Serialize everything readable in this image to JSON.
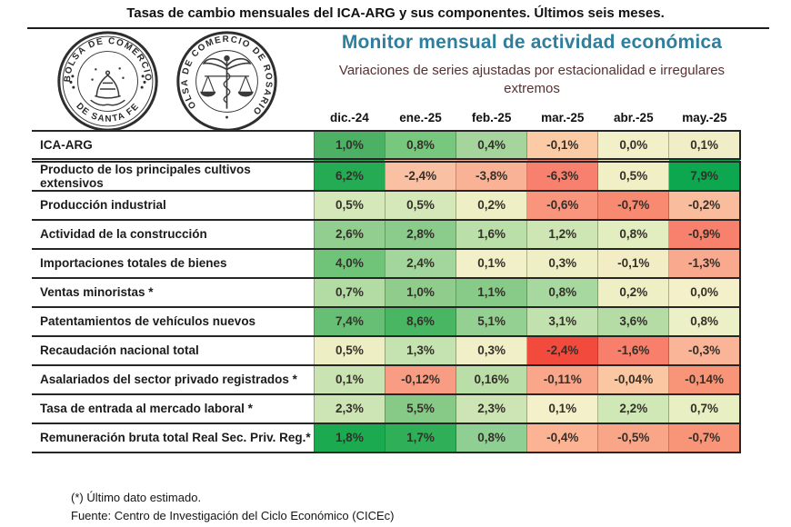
{
  "header": {
    "top_title": "Tasas de cambio mensuales del ICA-ARG y sus componentes. Últimos seis meses.",
    "title": "Monitor mensual de actividad económica",
    "subtitle": "Variaciones de series ajustadas por estacionalidad e irregulares extremos",
    "title_color": "#2E7F9E",
    "subtitle_color": "#5A3030"
  },
  "logos": {
    "santa_fe": {
      "text_top": "BOLSA DE COMERCIO",
      "text_bottom": "DE SANTA FE"
    },
    "rosario": {
      "text_arc": "BOLSA DE COMERCIO DE ROSARIO"
    }
  },
  "table": {
    "columns": [
      "dic.-24",
      "ene.-25",
      "feb.-25",
      "mar.-25",
      "abr.-25",
      "may.-25"
    ],
    "rows": [
      {
        "label": "ICA-ARG",
        "divider": true,
        "display": [
          "1,0%",
          "0,8%",
          "0,4%",
          "-0,1%",
          "0,0%",
          "0,1%"
        ],
        "colors": [
          "#4CB164",
          "#77C77E",
          "#A5D59D",
          "#FACBA5",
          "#F2F0C9",
          "#EFEEC6"
        ]
      },
      {
        "label": "Producto de los principales cultivos extensivos",
        "display": [
          "6,2%",
          "-2,4%",
          "-3,8%",
          "-6,3%",
          "0,5%",
          "7,9%"
        ],
        "colors": [
          "#24AB54",
          "#F9C0A3",
          "#F9B295",
          "#F8806E",
          "#F0EFC6",
          "#0DA750"
        ]
      },
      {
        "label": "Producción industrial",
        "display": [
          "0,5%",
          "0,5%",
          "0,2%",
          "-0,6%",
          "-0,7%",
          "-0,2%"
        ],
        "colors": [
          "#D5E8BA",
          "#D5E8BA",
          "#EFEFC6",
          "#F8957C",
          "#F88A72",
          "#F9BC9D"
        ]
      },
      {
        "label": "Actividad de la construcción",
        "display": [
          "2,6%",
          "2,8%",
          "1,6%",
          "1,2%",
          "0,8%",
          "-0,9%"
        ],
        "colors": [
          "#92CE90",
          "#8BCB8B",
          "#BBDFA9",
          "#CEE6B4",
          "#E3EEC0",
          "#F8816D"
        ]
      },
      {
        "label": "Importaciones totales de bienes",
        "display": [
          "4,0%",
          "2,4%",
          "0,1%",
          "0,3%",
          "-0,1%",
          "-1,3%"
        ],
        "colors": [
          "#70C47A",
          "#A3D69C",
          "#F2F0C8",
          "#EFEFC6",
          "#F3EDC5",
          "#F9A98D"
        ]
      },
      {
        "label": "Ventas minoristas *",
        "display": [
          "0,7%",
          "1,0%",
          "1,1%",
          "0,8%",
          "0,2%",
          "0,0%"
        ],
        "colors": [
          "#B3DCA4",
          "#90CD8D",
          "#88CA88",
          "#A7D89F",
          "#EFEFC6",
          "#F4F0CA"
        ]
      },
      {
        "label": "Patentamientos de vehículos nuevos",
        "display": [
          "7,4%",
          "8,6%",
          "5,1%",
          "3,1%",
          "3,6%",
          "0,8%"
        ],
        "colors": [
          "#66BF74",
          "#48B662",
          "#95D093",
          "#C1E1AE",
          "#B5DCA5",
          "#EBF0C6"
        ]
      },
      {
        "label": "Recaudación nacional total",
        "display": [
          "0,5%",
          "1,3%",
          "0,3%",
          "-2,4%",
          "-1,6%",
          "-0,3%"
        ],
        "colors": [
          "#EDEEC4",
          "#C5E3B0",
          "#F1EFC7",
          "#F24A3D",
          "#F87F6B",
          "#FAB497"
        ]
      },
      {
        "label": "Asalariados del sector privado registrados *",
        "display": [
          "0,1%",
          "-0,12%",
          "0,16%",
          "-0,11%",
          "-0,04%",
          "-0,14%"
        ],
        "colors": [
          "#C9E4B2",
          "#F89C84",
          "#BADEA8",
          "#F9A68B",
          "#FBC7A3",
          "#F89579"
        ]
      },
      {
        "label": "Tasa de entrada al mercado laboral *",
        "display": [
          "2,3%",
          "5,5%",
          "2,3%",
          "0,1%",
          "2,2%",
          "0,7%"
        ],
        "colors": [
          "#CDE5B4",
          "#87CA88",
          "#CDE5B4",
          "#F4F0C9",
          "#D0E7B6",
          "#E7EFC3"
        ]
      },
      {
        "label": "Remuneración bruta total Real Sec. Priv. Reg.*",
        "display": [
          "1,8%",
          "1,7%",
          "0,8%",
          "-0,4%",
          "-0,5%",
          "-0,7%"
        ],
        "colors": [
          "#1CAA50",
          "#2FAF58",
          "#8FCF94",
          "#FBB394",
          "#F9A588",
          "#F89579"
        ]
      }
    ]
  },
  "footer": {
    "note": "(*) Último dato estimado.",
    "source": "Fuente: Centro de Investigación del Ciclo Económico (CICEc)"
  },
  "chart_data": {
    "type": "heatmap",
    "title": "Tasas de cambio mensuales del ICA-ARG y sus componentes. Últimos seis meses.",
    "subtitle": "Variaciones de series ajustadas por estacionalidad e irregulares extremos",
    "unit": "%",
    "columns": [
      "dic.-24",
      "ene.-25",
      "feb.-25",
      "mar.-25",
      "abr.-25",
      "may.-25"
    ],
    "series": [
      {
        "name": "ICA-ARG",
        "values": [
          1.0,
          0.8,
          0.4,
          -0.1,
          0.0,
          0.1
        ]
      },
      {
        "name": "Producto de los principales cultivos extensivos",
        "values": [
          6.2,
          -2.4,
          -3.8,
          -6.3,
          0.5,
          7.9
        ]
      },
      {
        "name": "Producción industrial",
        "values": [
          0.5,
          0.5,
          0.2,
          -0.6,
          -0.7,
          -0.2
        ]
      },
      {
        "name": "Actividad de la construcción",
        "values": [
          2.6,
          2.8,
          1.6,
          1.2,
          0.8,
          -0.9
        ]
      },
      {
        "name": "Importaciones totales de bienes",
        "values": [
          4.0,
          2.4,
          0.1,
          0.3,
          -0.1,
          -1.3
        ]
      },
      {
        "name": "Ventas minoristas *",
        "values": [
          0.7,
          1.0,
          1.1,
          0.8,
          0.2,
          0.0
        ]
      },
      {
        "name": "Patentamientos de vehículos nuevos",
        "values": [
          7.4,
          8.6,
          5.1,
          3.1,
          3.6,
          0.8
        ]
      },
      {
        "name": "Recaudación nacional total",
        "values": [
          0.5,
          1.3,
          0.3,
          -2.4,
          -1.6,
          -0.3
        ]
      },
      {
        "name": "Asalariados del sector privado registrados *",
        "values": [
          0.1,
          -0.12,
          0.16,
          -0.11,
          -0.04,
          -0.14
        ]
      },
      {
        "name": "Tasa de entrada al mercado laboral *",
        "values": [
          2.3,
          5.5,
          2.3,
          0.1,
          2.2,
          0.7
        ]
      },
      {
        "name": "Remuneración bruta total Real Sec. Priv. Reg.*",
        "values": [
          1.8,
          1.7,
          0.8,
          -0.4,
          -0.5,
          -0.7
        ]
      }
    ],
    "color_scale": {
      "negative": "red/salmon",
      "near_zero": "cream",
      "positive": "green"
    },
    "legend_position": "none",
    "grid": "row and column borders"
  }
}
